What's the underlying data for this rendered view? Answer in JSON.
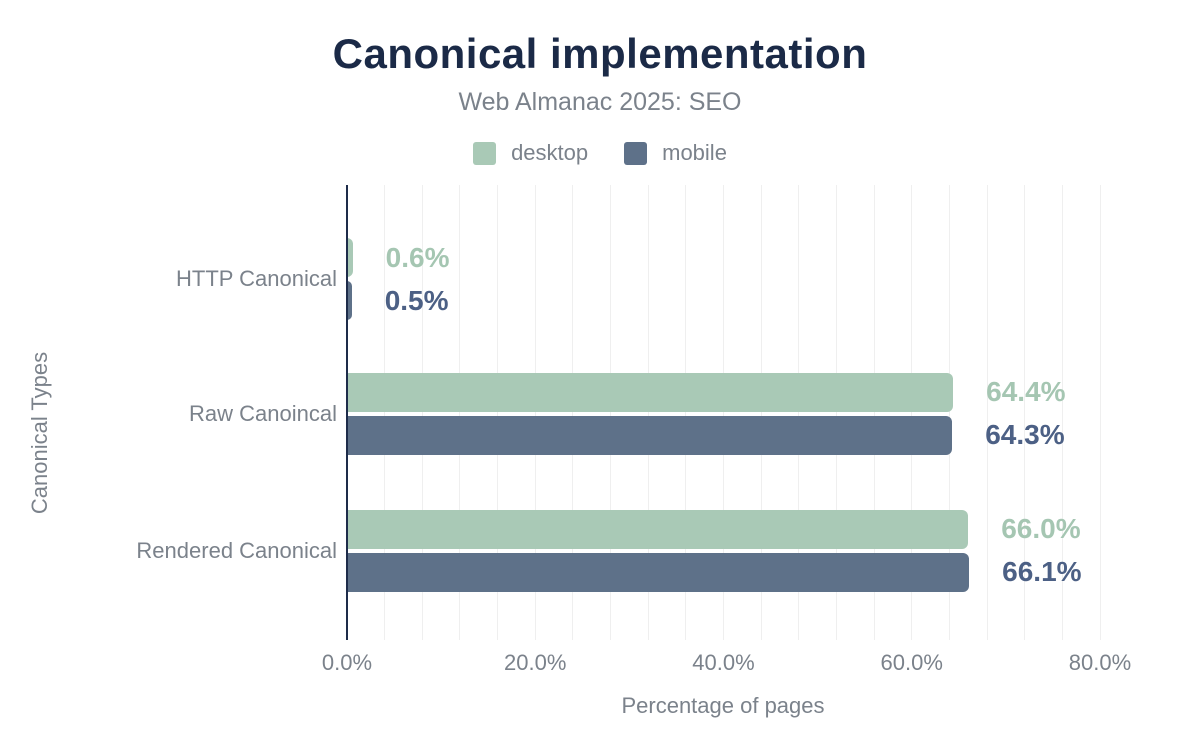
{
  "header": {
    "title": "Canonical implementation",
    "subtitle": "Web Almanac 2025: SEO"
  },
  "colors": {
    "background": "#ffffff",
    "title": "#1b2a47",
    "text": "#7b828b",
    "axis_line": "#1e2c4a",
    "gridline": "#efefef",
    "desktop": "#a9c9b6",
    "mobile": "#5e7189",
    "desktop_label": "#a5c6b2",
    "mobile_label": "#4c6085"
  },
  "chart_data": {
    "type": "bar",
    "orientation": "horizontal",
    "title": "Canonical implementation",
    "subtitle": "Web Almanac 2025: SEO",
    "categories": [
      "HTTP Canonical",
      "Raw Canoincal",
      "Rendered Canonical"
    ],
    "series": [
      {
        "name": "desktop",
        "color": "#a9c9b6",
        "label_color": "#a5c6b2",
        "values": [
          0.6,
          64.4,
          66.0
        ],
        "labels": [
          "0.6%",
          "64.4%",
          "66.0%"
        ]
      },
      {
        "name": "mobile",
        "color": "#5e7189",
        "label_color": "#4c6085",
        "values": [
          0.5,
          64.3,
          66.1
        ],
        "labels": [
          "0.5%",
          "64.3%",
          "66.1%"
        ]
      }
    ],
    "xlabel": "Percentage of pages",
    "ylabel": "Canonical Types",
    "xlim": [
      0,
      80
    ],
    "x_ticks": [
      {
        "value": 0,
        "label": "0.0%"
      },
      {
        "value": 20,
        "label": "20.0%"
      },
      {
        "value": 40,
        "label": "40.0%"
      },
      {
        "value": 60,
        "label": "60.0%"
      },
      {
        "value": 80,
        "label": "80.0%"
      }
    ],
    "minor_grid_step_pct": 4,
    "grid": "vertical",
    "legend_position": "top"
  }
}
